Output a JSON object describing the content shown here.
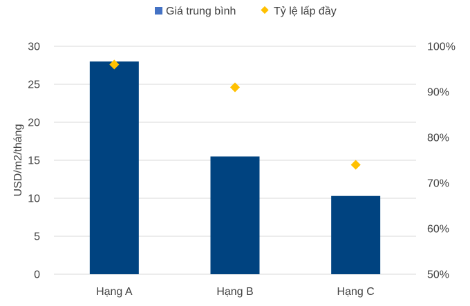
{
  "chart_data": {
    "type": "bar",
    "categories": [
      "Hạng A",
      "Hạng B",
      "Hạng C"
    ],
    "series": [
      {
        "name": "Giá trung bình",
        "kind": "bar",
        "axis": "left",
        "values": [
          28,
          15.5,
          10.3
        ],
        "color": "#004380"
      },
      {
        "name": "Tỷ lệ lấp đầy",
        "kind": "marker",
        "axis": "right",
        "values": [
          96,
          91,
          74
        ],
        "color": "#FFC000"
      }
    ],
    "ylabel": "USD/m2/tháng",
    "ylim": [
      0,
      30
    ],
    "yticks": [
      "0",
      "5",
      "10",
      "15",
      "20",
      "25",
      "30"
    ],
    "y2lim": [
      50,
      100
    ],
    "y2ticks": [
      "50%",
      "60%",
      "70%",
      "80%",
      "90%",
      "100%"
    ],
    "grid": true,
    "legend_position": "top"
  }
}
